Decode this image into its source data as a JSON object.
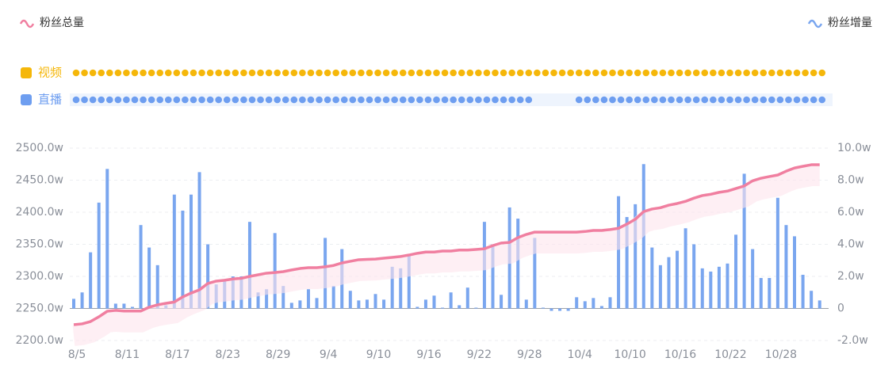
{
  "chart_data": {
    "type": "bar-line",
    "categories": [
      "8/5",
      null,
      null,
      null,
      null,
      null,
      "8/11",
      null,
      null,
      null,
      null,
      null,
      "8/17",
      null,
      null,
      null,
      null,
      null,
      "8/23",
      null,
      null,
      null,
      null,
      null,
      "8/29",
      null,
      null,
      null,
      null,
      null,
      "9/4",
      null,
      null,
      null,
      null,
      null,
      "9/10",
      null,
      null,
      null,
      null,
      null,
      "9/16",
      null,
      null,
      null,
      null,
      null,
      "9/22",
      null,
      null,
      null,
      null,
      null,
      "9/28",
      null,
      null,
      null,
      null,
      null,
      "10/4",
      null,
      null,
      null,
      null,
      null,
      "10/10",
      null,
      null,
      null,
      null,
      null,
      "10/16",
      null,
      null,
      null,
      null,
      null,
      "10/22",
      null,
      null,
      null,
      null,
      null,
      "10/28",
      null,
      null,
      null,
      null,
      null
    ],
    "series": [
      {
        "name": "粉丝总量",
        "type": "line",
        "axis": "y",
        "color": "#f07fa0",
        "values": [
          2224.7,
          2226,
          2229.6,
          2237,
          2245.7,
          2247,
          2246,
          2246,
          2246,
          2252,
          2255.6,
          2258,
          2260,
          2268,
          2274,
          2279,
          2289,
          2292.6,
          2294,
          2296,
          2297,
          2300,
          2302.5,
          2305,
          2306,
          2307.4,
          2310,
          2312.3,
          2313.6,
          2313.6,
          2315,
          2317,
          2321,
          2323.5,
          2326,
          2326.5,
          2327,
          2328.4,
          2329.6,
          2331,
          2333.3,
          2336,
          2338,
          2338,
          2339.5,
          2339.5,
          2341,
          2341,
          2342,
          2343,
          2348,
          2352,
          2353,
          2360.5,
          2365.4,
          2369,
          2369,
          2369,
          2369,
          2369,
          2369,
          2370,
          2371.6,
          2371.6,
          2373,
          2375,
          2381.5,
          2389,
          2401,
          2405,
          2407,
          2411,
          2413.6,
          2417,
          2422,
          2426,
          2428,
          2431,
          2433,
          2437,
          2441,
          2449,
          2453,
          2455.6,
          2458,
          2464,
          2469,
          2471.6,
          2474,
          2474
        ]
      },
      {
        "name": "粉丝增量",
        "type": "bar",
        "axis": "y2",
        "color": "#7aa6ef",
        "values": [
          0.6,
          1.0,
          3.5,
          6.6,
          8.7,
          0.3,
          0.3,
          0.1,
          5.2,
          3.8,
          2.7,
          0.2,
          7.1,
          6.1,
          7.1,
          8.5,
          4.0,
          1.5,
          1.7,
          2.0,
          2.0,
          5.4,
          1.0,
          1.2,
          4.7,
          1.4,
          0.35,
          0.5,
          1.2,
          0.65,
          4.4,
          1.4,
          3.7,
          1.1,
          0.5,
          0.55,
          0.9,
          0.55,
          2.6,
          2.5,
          3.3,
          0.1,
          0.55,
          0.8,
          0.05,
          1.0,
          0.2,
          1.3,
          0.05,
          5.4,
          4.0,
          0.85,
          6.3,
          5.6,
          0.55,
          4.4,
          0.05,
          -0.15,
          -0.15,
          -0.15,
          0.7,
          0.45,
          0.65,
          0.15,
          0.7,
          7.0,
          5.7,
          6.5,
          9.0,
          3.8,
          2.7,
          3.2,
          3.6,
          5.0,
          4.0,
          2.5,
          2.3,
          2.6,
          2.8,
          4.6,
          8.4,
          3.7,
          1.9,
          1.9,
          6.9,
          5.2,
          4.5,
          2.1,
          1.1,
          0.5
        ]
      }
    ],
    "ylim": [
      2200,
      2500
    ],
    "yticks": [
      {
        "value": 2200,
        "label": "2200.0w"
      },
      {
        "value": 2250,
        "label": "2250.0w"
      },
      {
        "value": 2300,
        "label": "2300.0w"
      },
      {
        "value": 2350,
        "label": "2350.0w"
      },
      {
        "value": 2400,
        "label": "2400.0w"
      },
      {
        "value": 2450,
        "label": "2450.0w"
      },
      {
        "value": 2500,
        "label": "2500.0w"
      }
    ],
    "y2lim": [
      -2,
      10
    ],
    "y2ticks": [
      {
        "value": -2,
        "label": "-2.0w"
      },
      {
        "value": 0,
        "label": "0"
      },
      {
        "value": 2,
        "label": "2.0w"
      },
      {
        "value": 4,
        "label": "4.0w"
      },
      {
        "value": 6,
        "label": "6.0w"
      },
      {
        "value": 8,
        "label": "8.0w"
      },
      {
        "value": 10,
        "label": "10.0w"
      }
    ],
    "grid": true,
    "timeline": [
      {
        "label": "视频",
        "color": "#f5b70a",
        "active": [
          true,
          true,
          true,
          true,
          true,
          true,
          true,
          true,
          true,
          true,
          true,
          true,
          true,
          true,
          true,
          true,
          true,
          true,
          true,
          true,
          true,
          true,
          true,
          true,
          true,
          true,
          true,
          true,
          true,
          true,
          true,
          true,
          true,
          true,
          true,
          true,
          true,
          true,
          true,
          true,
          true,
          true,
          true,
          true,
          true,
          true,
          true,
          true,
          true,
          true,
          true,
          true,
          true,
          true,
          true,
          true,
          true,
          true,
          true,
          true,
          true,
          true,
          true,
          true,
          true,
          true,
          true,
          true,
          true,
          true,
          true,
          true,
          true,
          true,
          true,
          true,
          true,
          true,
          true,
          true,
          true,
          true,
          true,
          true,
          true,
          true,
          true,
          true,
          true,
          true
        ]
      },
      {
        "label": "直播",
        "color": "#6e9ef0",
        "active": [
          true,
          true,
          true,
          true,
          true,
          true,
          true,
          true,
          true,
          true,
          true,
          true,
          true,
          true,
          true,
          true,
          true,
          true,
          true,
          true,
          true,
          true,
          true,
          true,
          true,
          true,
          true,
          true,
          true,
          true,
          true,
          true,
          true,
          true,
          true,
          true,
          true,
          true,
          true,
          true,
          true,
          true,
          true,
          true,
          true,
          true,
          true,
          true,
          true,
          true,
          true,
          true,
          true,
          true,
          true,
          false,
          false,
          false,
          false,
          false,
          true,
          true,
          true,
          true,
          true,
          true,
          true,
          true,
          true,
          true,
          true,
          true,
          true,
          true,
          true,
          true,
          true,
          true,
          true,
          true,
          true,
          true,
          true,
          true,
          true,
          true,
          true,
          true,
          true,
          true
        ]
      }
    ]
  }
}
